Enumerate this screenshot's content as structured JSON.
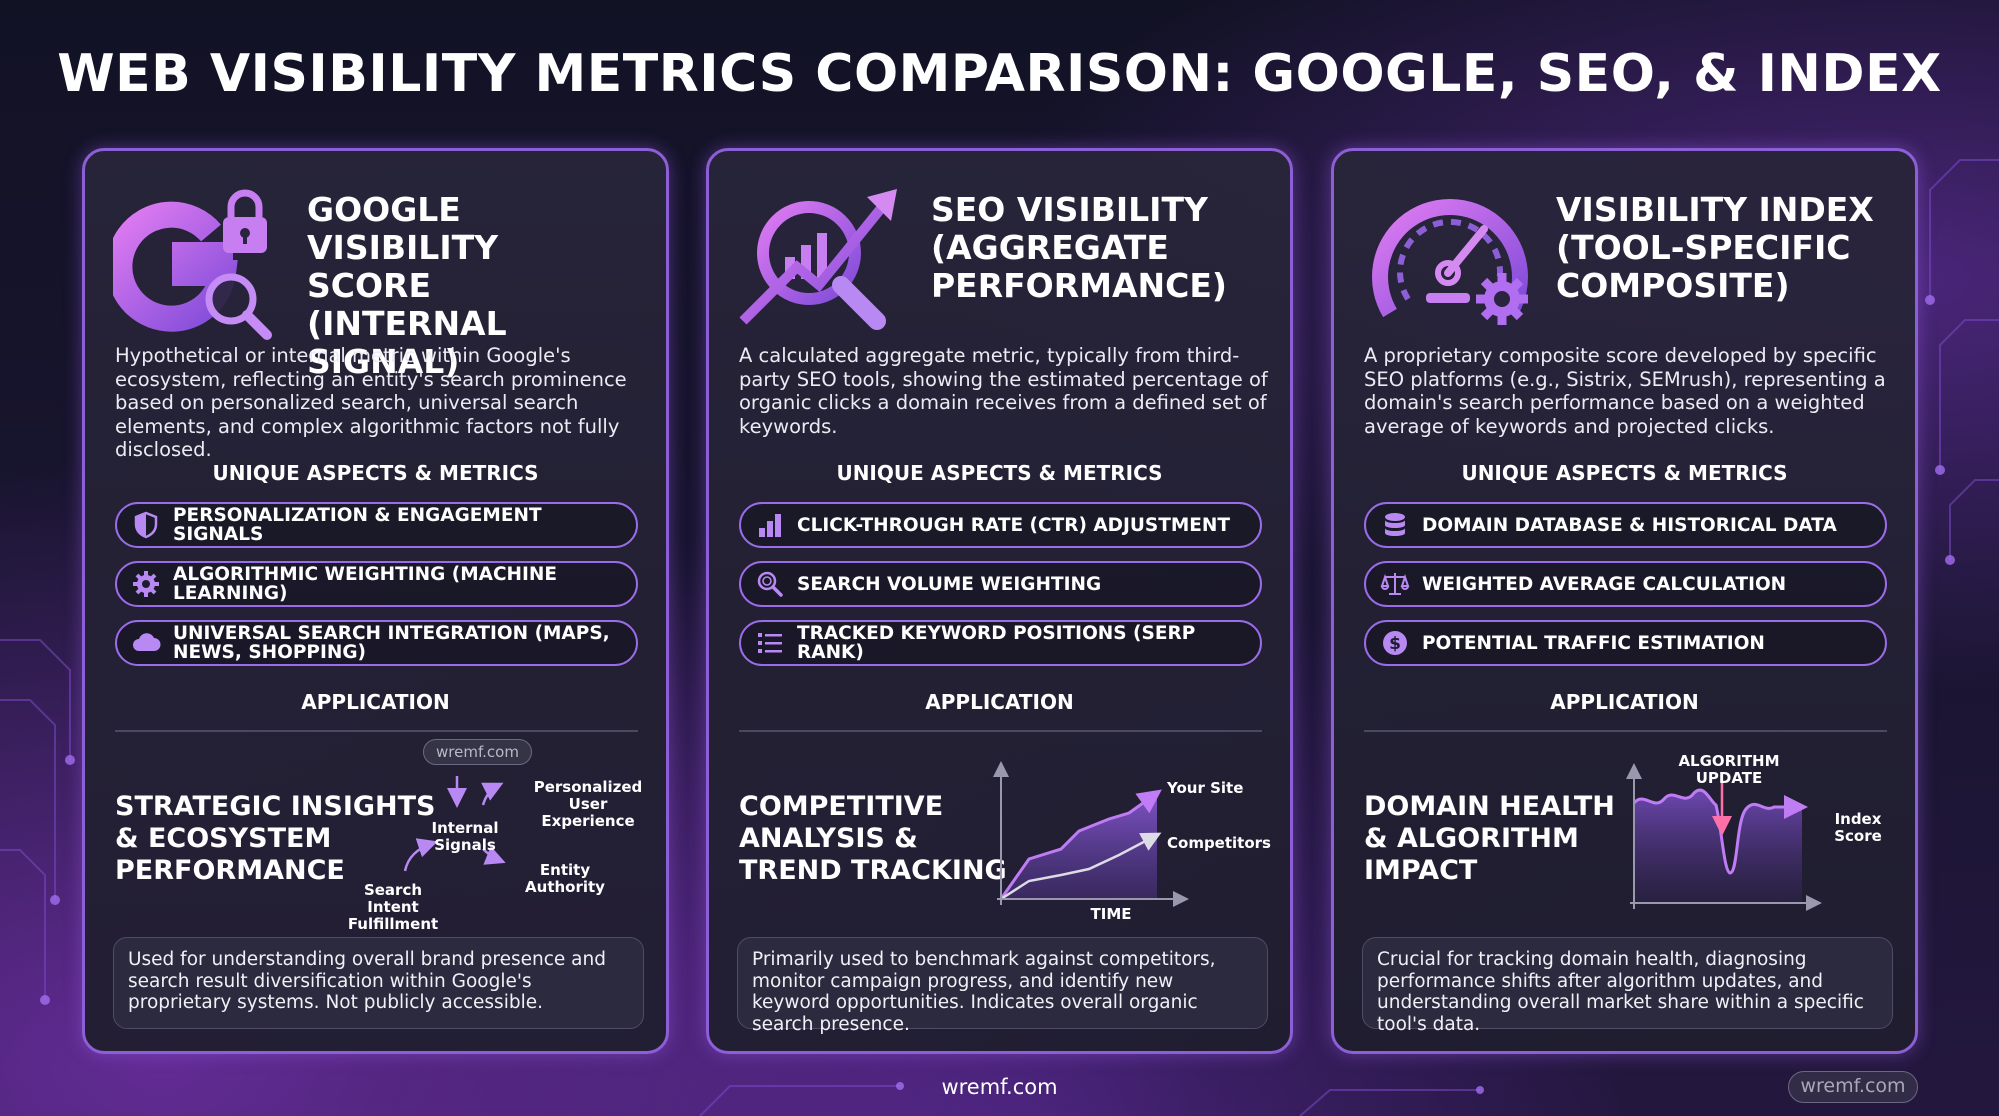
{
  "title": "WEB VISIBILITY METRICS COMPARISON: GOOGLE, SEO, & INDEX",
  "cards": [
    {
      "heading": [
        "GOOGLE VISIBILITY",
        "SCORE",
        "(INTERNAL SIGNAL)"
      ],
      "icon": "google-g-lock-magnifier-icon",
      "description": "Hypothetical or internal metric within Google's ecosystem, reflecting an entity's search prominence based on personalized search, universal search elements, and complex algorithmic factors not fully disclosed.",
      "aspects_label": "UNIQUE ASPECTS & METRICS",
      "aspects": [
        {
          "label": "PERSONALIZATION & ENGAGEMENT SIGNALS",
          "icon": "shield-icon"
        },
        {
          "label": "ALGORITHMIC WEIGHTING (MACHINE LEARNING)",
          "icon": "gear-icon"
        },
        {
          "label": "UNIVERSAL SEARCH INTEGRATION (MAPS, NEWS, SHOPPING)",
          "icon": "cloud-icon"
        }
      ],
      "application_label": "APPLICATION",
      "application_title": [
        "STRATEGIC INSIGHTS",
        "& ECOSYSTEM",
        "PERFORMANCE"
      ],
      "diagram": {
        "badge": "wremf.com",
        "labels": [
          "Personalized User Experience",
          "Internal Signals",
          "Entity Authority",
          "Search Intent Fulfillment"
        ]
      },
      "note": "Used for understanding overall brand presence and search result diversification within Google's proprietary systems. Not publicly accessible."
    },
    {
      "heading": [
        "SEO VISIBILITY",
        "(AGGREGATE",
        "PERFORMANCE)"
      ],
      "icon": "chart-magnifier-arrow-icon",
      "description": "A calculated aggregate metric, typically from third-party SEO tools, showing the estimated percentage of organic clicks a domain receives from a defined set of keywords.",
      "aspects_label": "UNIQUE ASPECTS & METRICS",
      "aspects": [
        {
          "label": "CLICK-THROUGH RATE (CTR) ADJUSTMENT",
          "icon": "bar-chart-icon"
        },
        {
          "label": "SEARCH VOLUME WEIGHTING",
          "icon": "search-icon"
        },
        {
          "label": "TRACKED KEYWORD POSITIONS (SERP RANK)",
          "icon": "list-icon"
        }
      ],
      "application_label": "APPLICATION",
      "application_title": [
        "COMPETITIVE",
        "ANALYSIS &",
        "TREND TRACKING"
      ],
      "diagram": {
        "series": [
          "Your Site",
          "Competitors"
        ],
        "xlabel": "TIME"
      },
      "note": "Primarily used to benchmark against competitors, monitor campaign progress, and identify new keyword opportunities. Indicates overall organic search presence."
    },
    {
      "heading": [
        "VISIBILITY INDEX",
        "(TOOL-SPECIFIC",
        "COMPOSITE)"
      ],
      "icon": "speedometer-gear-icon",
      "description": "A proprietary composite score developed by specific SEO platforms (e.g., Sistrix, SEMrush), representing a domain's search performance based on a weighted average of keywords and projected clicks.",
      "aspects_label": "UNIQUE ASPECTS & METRICS",
      "aspects": [
        {
          "label": "DOMAIN DATABASE & HISTORICAL DATA",
          "icon": "database-icon"
        },
        {
          "label": "WEIGHTED AVERAGE CALCULATION",
          "icon": "scale-icon"
        },
        {
          "label": "POTENTIAL TRAFFIC ESTIMATION",
          "icon": "dollar-coin-icon"
        }
      ],
      "application_label": "APPLICATION",
      "application_title": [
        "DOMAIN HEALTH",
        "& ALGORITHM",
        "IMPACT"
      ],
      "diagram": {
        "labels": [
          "ALGORITHM UPDATE",
          "Index Score"
        ]
      },
      "note": "Crucial for tracking domain health, diagnosing performance shifts after algorithm updates, and understanding overall market share within a specific tool's data."
    }
  ],
  "footer": "wremf.com",
  "corner_badge": "wremf.com",
  "colors": {
    "accent": "#9b6ce8",
    "border": "#8d5fd6",
    "background": "#161428",
    "card": "#28253a"
  }
}
